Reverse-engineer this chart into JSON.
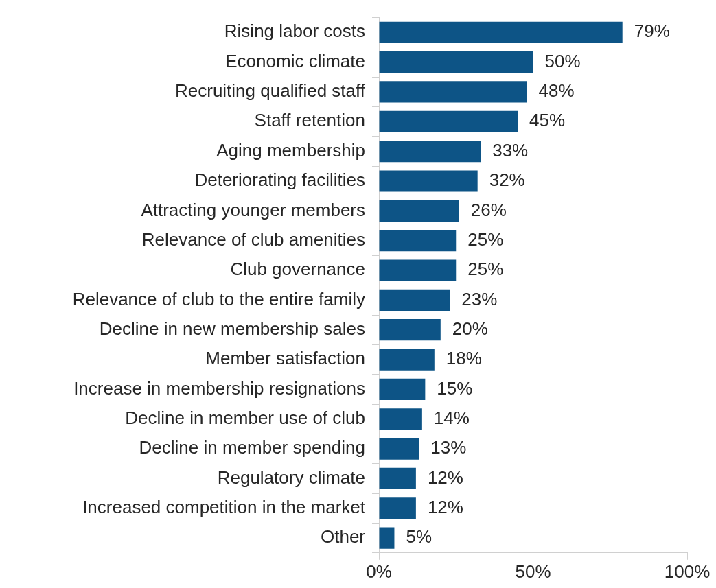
{
  "chart_data": {
    "type": "bar",
    "orientation": "horizontal",
    "categories": [
      "Rising labor costs",
      "Economic climate",
      "Recruiting qualified staff",
      "Staff retention",
      "Aging membership",
      "Deteriorating facilities",
      "Attracting younger members",
      "Relevance of club amenities",
      "Club governance",
      "Relevance of club to the entire family",
      "Decline in new membership sales",
      "Member satisfaction",
      "Increase in membership resignations",
      "Decline in member use of club",
      "Decline in member spending",
      "Regulatory climate",
      "Increased competition in the market",
      "Other"
    ],
    "values": [
      79,
      50,
      48,
      45,
      33,
      32,
      26,
      25,
      25,
      23,
      20,
      18,
      15,
      14,
      13,
      12,
      12,
      5
    ],
    "value_labels": [
      "79%",
      "50%",
      "48%",
      "45%",
      "33%",
      "32%",
      "26%",
      "25%",
      "25%",
      "23%",
      "20%",
      "18%",
      "15%",
      "14%",
      "13%",
      "12%",
      "12%",
      "5%"
    ],
    "color": "#0d5486",
    "xlim": [
      0,
      100
    ],
    "xticks": [
      {
        "value": 0,
        "label": "0%"
      },
      {
        "value": 50,
        "label": "50%"
      },
      {
        "value": 100,
        "label": "100%"
      }
    ],
    "grid": false,
    "legend": false
  }
}
